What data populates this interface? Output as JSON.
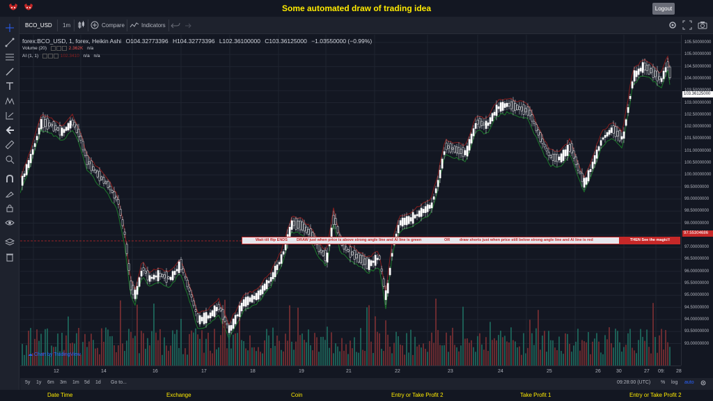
{
  "app": {
    "title": "Some automated draw of trading idea",
    "logout_label": "Logout"
  },
  "toolbar": {
    "symbol": "BCO_USD",
    "interval": "1m",
    "compare_label": "Compare",
    "indicators_label": "Indicators"
  },
  "legend": {
    "main": {
      "name": "forex:BCO_USD, 1, forex, Heikin Ashi",
      "open": "O104.32773396",
      "high": "H104.32773396",
      "low": "L102.36100000",
      "close": "C103.36125000",
      "change": "−1.03550000 (−0.99%)"
    },
    "volume": {
      "name": "Volume (20)",
      "value": "2.362K",
      "na": "n/a"
    },
    "ai": {
      "name": "AI (1, 1)",
      "value1": "102.3410",
      "value2": "n/a",
      "value3": "n/a"
    }
  },
  "price_axis": {
    "ticks": [
      "105.50000000",
      "105.00000000",
      "104.50000000",
      "104.00000000",
      "103.50000000",
      "103.00000000",
      "102.50000000",
      "102.00000000",
      "101.50000000",
      "101.00000000",
      "100.50000000",
      "100.00000000",
      "99.50000000",
      "99.00000000",
      "98.50000000",
      "98.00000000",
      "97.50000000",
      "97.00000000",
      "96.50000000",
      "96.00000000",
      "95.50000000",
      "95.00000000",
      "94.50000000",
      "94.00000000",
      "93.50000000",
      "93.00000000"
    ],
    "last_price": "103.36125000",
    "line_price": "97.55304686",
    "last_price_color": "#ffffff",
    "line_price_color": "#c62828"
  },
  "time_axis": {
    "labels": [
      "12",
      "14",
      "16",
      "17",
      "18",
      "19",
      "21",
      "22",
      "23",
      "24",
      "25",
      "26",
      "27",
      "28",
      "30",
      "09:"
    ]
  },
  "bottom_bar": {
    "ranges": [
      "5y",
      "1y",
      "6m",
      "3m",
      "1m",
      "5d",
      "1d"
    ],
    "goto": "Go to...",
    "time": "09:28:00 (UTC)",
    "percent": "%",
    "log": "log",
    "auto": "auto"
  },
  "callout": {
    "text1": "Wait till flip ENDS",
    "text2": "DRAW just when  price is above strong angle line and AI line is green",
    "text3": "OR",
    "text4": "draw shorts just when price still below strong angle line and AI line is red",
    "action": "THEN See the magic!!"
  },
  "watermark": "Chart by TradingView",
  "footer": {
    "items": [
      "Date Time",
      "Exchange",
      "Coin",
      "Entry or Take Profit 2",
      "Take Profit 1",
      "Entry or Take Profit 2"
    ]
  },
  "colors": {
    "background": "#131722",
    "bull": "#26a69a",
    "bear": "#ef5350",
    "accent_yellow": "#ffeb00",
    "ai_red": "#8b1e1e",
    "ai_green": "#1b7a2a"
  }
}
